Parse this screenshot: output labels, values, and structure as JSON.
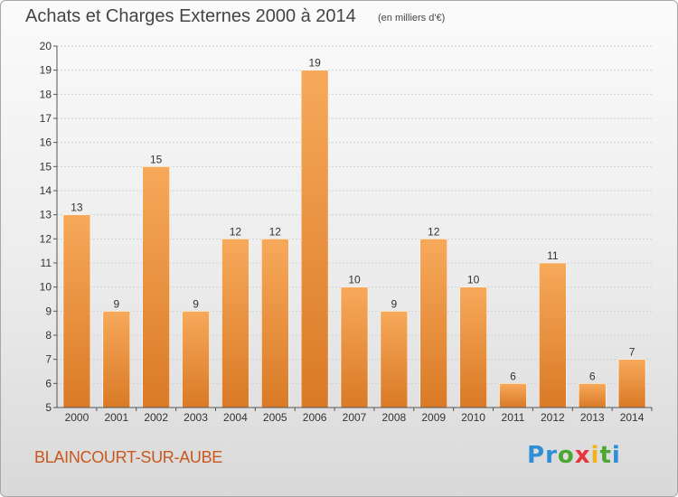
{
  "title": "Achats et Charges Externes 2000 à 2014",
  "unit": "(en milliers d'€)",
  "place": "BLAINCOURT-SUR-AUBE",
  "logo": {
    "letters": [
      "P",
      "r",
      "o",
      "x",
      "i",
      "t",
      "i"
    ],
    "colors": [
      "#2e8fd6",
      "#2e8fd6",
      "#4aa832",
      "#e8343b",
      "#f3b21b",
      "#4aa832",
      "#2e8fd6"
    ]
  },
  "colors": {
    "bar_top": "#f7a95a",
    "bar_bottom": "#d97a26",
    "grid": "#cfcfcf",
    "axis": "#555555",
    "place": "#c8581e"
  },
  "chart_data": {
    "type": "bar",
    "title": "Achats et Charges Externes 2000 à 2014",
    "categories": [
      "2000",
      "2001",
      "2002",
      "2003",
      "2004",
      "2005",
      "2006",
      "2007",
      "2008",
      "2009",
      "2010",
      "2011",
      "2012",
      "2013",
      "2014"
    ],
    "values": [
      13,
      9,
      15,
      9,
      12,
      12,
      19,
      10,
      9,
      12,
      10,
      6,
      11,
      6,
      7
    ],
    "ylim": [
      5,
      20
    ],
    "yticks": [
      5,
      6,
      7,
      8,
      9,
      10,
      11,
      12,
      13,
      14,
      15,
      16,
      17,
      18,
      19,
      20
    ],
    "grid": true,
    "xlabel": "",
    "ylabel": ""
  }
}
